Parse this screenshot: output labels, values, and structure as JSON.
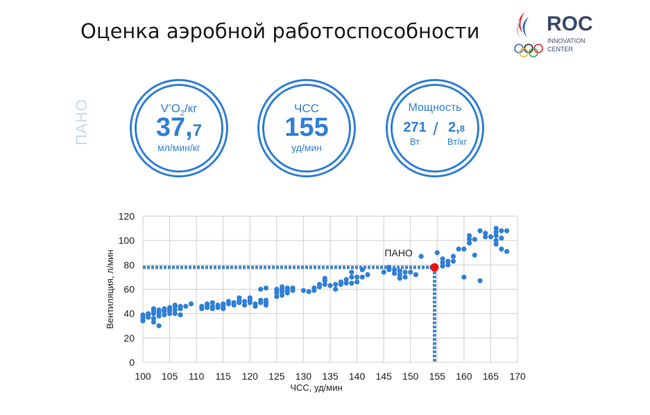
{
  "header": {
    "title": "Оценка аэробной работоспособности"
  },
  "logo": {
    "name": "ROC",
    "sub1": "INNOVATION",
    "sub2": "CENTER"
  },
  "side_label": "ПАНО",
  "metrics": {
    "vo2": {
      "label_main": "V’O",
      "label_sub": "2",
      "label_tail": "/кг",
      "value_int": "37,",
      "value_dec": "7",
      "unit": "мл/мин/кг"
    },
    "hr": {
      "label": "ЧСС",
      "value": "155",
      "unit": "уд/мин"
    },
    "power": {
      "label": "Мощность",
      "abs_value": "271",
      "abs_unit": "Вт",
      "sep": "/",
      "rel_int": "2,",
      "rel_dec": "8",
      "rel_unit": "Вт/кг"
    }
  },
  "colors": {
    "accent": "#2f7fd6",
    "marker": "#ee1111",
    "grid": "#cfcfcf",
    "guide": "#4a86c8"
  },
  "chart_data": {
    "type": "scatter",
    "xlabel": "ЧСС, уд/мин",
    "ylabel": "Вентиляция, л/мин",
    "xlim": [
      100,
      170
    ],
    "ylim": [
      0,
      120
    ],
    "xticks": [
      100,
      105,
      110,
      115,
      120,
      125,
      130,
      135,
      140,
      145,
      150,
      155,
      160,
      165,
      170
    ],
    "yticks": [
      0,
      20,
      40,
      60,
      80,
      100,
      120
    ],
    "grid": true,
    "annotation": {
      "label": "ПАНО",
      "x": 154.5,
      "y": 78
    },
    "points": [
      [
        100,
        34
      ],
      [
        100,
        36
      ],
      [
        100,
        38
      ],
      [
        100,
        39
      ],
      [
        101,
        37
      ],
      [
        101,
        39
      ],
      [
        101,
        40
      ],
      [
        102,
        33
      ],
      [
        102,
        36
      ],
      [
        102,
        40
      ],
      [
        102,
        42
      ],
      [
        102,
        44
      ],
      [
        103,
        30
      ],
      [
        103,
        38
      ],
      [
        103,
        41
      ],
      [
        103,
        43
      ],
      [
        104,
        39
      ],
      [
        104,
        42
      ],
      [
        104,
        43
      ],
      [
        104,
        44
      ],
      [
        105,
        40
      ],
      [
        105,
        42
      ],
      [
        105,
        44
      ],
      [
        105,
        45
      ],
      [
        106,
        40
      ],
      [
        106,
        43
      ],
      [
        106,
        46
      ],
      [
        106,
        47
      ],
      [
        107,
        39
      ],
      [
        107,
        44
      ],
      [
        107,
        46
      ],
      [
        108,
        46
      ],
      [
        109,
        48
      ],
      [
        111,
        44
      ],
      [
        111,
        46
      ],
      [
        112,
        45
      ],
      [
        112,
        47
      ],
      [
        112,
        48
      ],
      [
        113,
        44
      ],
      [
        113,
        46
      ],
      [
        113,
        49
      ],
      [
        114,
        45
      ],
      [
        114,
        47
      ],
      [
        115,
        44
      ],
      [
        115,
        46
      ],
      [
        115,
        48
      ],
      [
        116,
        48
      ],
      [
        116,
        50
      ],
      [
        117,
        47
      ],
      [
        117,
        49
      ],
      [
        118,
        49
      ],
      [
        118,
        51
      ],
      [
        118,
        53
      ],
      [
        119,
        47
      ],
      [
        119,
        50
      ],
      [
        120,
        49
      ],
      [
        120,
        51
      ],
      [
        120,
        53
      ],
      [
        121,
        46
      ],
      [
        121,
        48
      ],
      [
        122,
        49
      ],
      [
        122,
        51
      ],
      [
        122,
        60
      ],
      [
        123,
        47
      ],
      [
        123,
        49
      ],
      [
        123,
        51
      ],
      [
        123,
        61
      ],
      [
        125,
        54
      ],
      [
        125,
        57
      ],
      [
        125,
        59
      ],
      [
        125,
        60
      ],
      [
        126,
        55
      ],
      [
        126,
        58
      ],
      [
        126,
        60
      ],
      [
        126,
        62
      ],
      [
        127,
        57
      ],
      [
        127,
        59
      ],
      [
        127,
        61
      ],
      [
        128,
        59
      ],
      [
        128,
        61
      ],
      [
        130,
        59
      ],
      [
        131,
        58
      ],
      [
        132,
        59
      ],
      [
        132,
        61
      ],
      [
        133,
        62
      ],
      [
        133,
        64
      ],
      [
        134,
        64
      ],
      [
        134,
        67
      ],
      [
        134,
        69
      ],
      [
        135,
        63
      ],
      [
        136,
        60
      ],
      [
        136,
        64
      ],
      [
        137,
        64
      ],
      [
        137,
        66
      ],
      [
        138,
        65
      ],
      [
        138,
        68
      ],
      [
        139,
        65
      ],
      [
        139,
        70
      ],
      [
        139,
        74
      ],
      [
        140,
        66
      ],
      [
        140,
        70
      ],
      [
        141,
        70
      ],
      [
        141,
        76
      ],
      [
        142,
        72
      ],
      [
        145,
        74
      ],
      [
        146,
        76
      ],
      [
        146,
        78
      ],
      [
        147,
        73
      ],
      [
        147,
        76
      ],
      [
        148,
        69
      ],
      [
        148,
        72
      ],
      [
        148,
        75
      ],
      [
        149,
        70
      ],
      [
        149,
        74
      ],
      [
        150,
        74
      ],
      [
        151,
        72
      ],
      [
        152,
        87
      ],
      [
        154,
        78
      ],
      [
        155,
        90
      ],
      [
        156,
        79
      ],
      [
        156,
        82
      ],
      [
        156,
        85
      ],
      [
        157,
        80
      ],
      [
        157,
        83
      ],
      [
        158,
        83
      ],
      [
        158,
        87
      ],
      [
        159,
        93
      ],
      [
        160,
        70
      ],
      [
        160,
        93
      ],
      [
        161,
        98
      ],
      [
        161,
        101
      ],
      [
        161,
        104
      ],
      [
        162,
        88
      ],
      [
        162,
        101
      ],
      [
        163,
        67
      ],
      [
        163,
        108
      ],
      [
        164,
        103
      ],
      [
        164,
        106
      ],
      [
        165,
        103
      ],
      [
        166,
        97
      ],
      [
        166,
        100
      ],
      [
        166,
        104
      ],
      [
        166,
        107
      ],
      [
        166,
        110
      ],
      [
        167,
        93
      ],
      [
        167,
        102
      ],
      [
        167,
        108
      ],
      [
        168,
        91
      ],
      [
        168,
        108
      ]
    ]
  }
}
